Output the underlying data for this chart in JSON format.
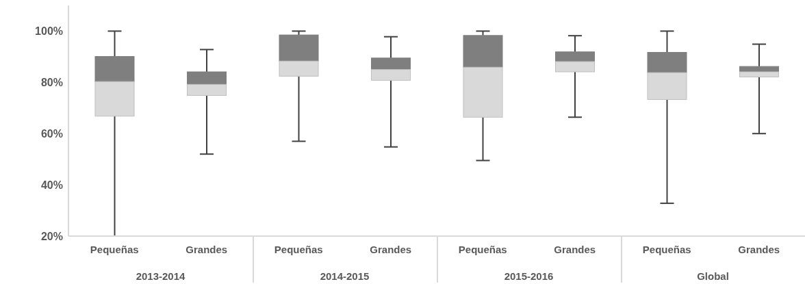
{
  "chart_data": [
    {
      "type": "box",
      "xlabel": "2013-2014",
      "categories": [
        "Pequeñas",
        "Grandes"
      ],
      "color": "#d9d9d9",
      "ylim": [
        20,
        110
      ],
      "yticks": [
        {
          "value": 20,
          "label": "20%"
        },
        {
          "value": 40,
          "label": "40%"
        },
        {
          "value": 60,
          "label": "60%"
        },
        {
          "value": 80,
          "label": "80%"
        },
        {
          "value": 100,
          "label": "100%"
        }
      ],
      "boxes": [
        {
          "low": 20,
          "q1": 66.8,
          "median": 80.3,
          "q3": 90.1,
          "high": 100
        },
        {
          "low": 52,
          "q1": 74.9,
          "median": 79.2,
          "q3": 84.1,
          "high": 92.8
        }
      ]
    },
    {
      "type": "box",
      "xlabel": "2014-2015",
      "categories": [
        "Pequeñas",
        "Grandes"
      ],
      "color": "#d9d9d9",
      "ylim": [
        20,
        110
      ],
      "tick_labels": "x",
      "boxes": [
        {
          "low": 57,
          "q1": 82.4,
          "median": 88.3,
          "q3": 98.5,
          "high": 100
        },
        {
          "low": 54.8,
          "q1": 80.8,
          "median": 85,
          "q3": 89.5,
          "high": 97.8
        }
      ]
    },
    {
      "type": "box",
      "xlabel": "2015-2016",
      "categories": [
        "Pequeñas",
        "Grandes"
      ],
      "color": "#d9d9d9",
      "ylim": [
        20,
        110
      ],
      "tick_labels": "x",
      "boxes": [
        {
          "low": 49.5,
          "q1": 66.4,
          "median": 85.9,
          "q3": 98.3,
          "high": 100
        },
        {
          "low": 66.4,
          "q1": 84.1,
          "median": 88.1,
          "q3": 91.9,
          "high": 98.2
        }
      ]
    },
    {
      "type": "box",
      "xlabel": "Global",
      "categories": [
        "Pequeñas",
        "Grandes"
      ],
      "color": "#d9d9d9",
      "ylim": [
        20,
        110
      ],
      "tick_labels": "x",
      "boxes": [
        {
          "low": 32.8,
          "q1": 73.3,
          "median": 83.8,
          "q3": 91.7,
          "high": 100
        },
        {
          "low": 60,
          "q1": 82.1,
          "median": 84.1,
          "q3": 86.2,
          "high": 94.9
        }
      ]
    }
  ]
}
